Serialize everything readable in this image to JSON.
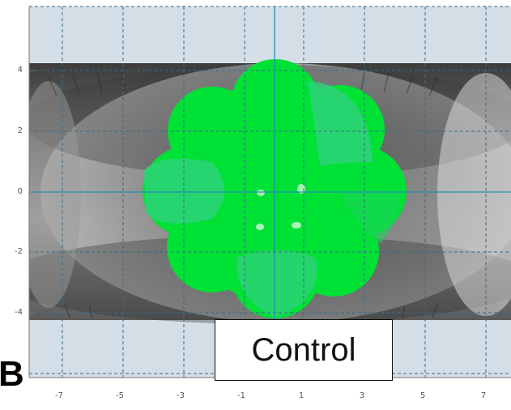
{
  "figure": {
    "panel_letter": "B",
    "caption_box": "Control",
    "y_ticks": [
      "4",
      "2",
      "0",
      "-2",
      "-4"
    ],
    "x_ticks": [
      "-7",
      "-5",
      "-3",
      "-1",
      "1",
      "3",
      "5",
      "7"
    ],
    "colors": {
      "background_band": "#d4dee7",
      "grid": "#3a6a8a",
      "axis_line": "#1f8fb5",
      "map_green": "#00e135",
      "map_teal": "#2dd27a",
      "eye_photo": "#8a8a8a"
    }
  }
}
